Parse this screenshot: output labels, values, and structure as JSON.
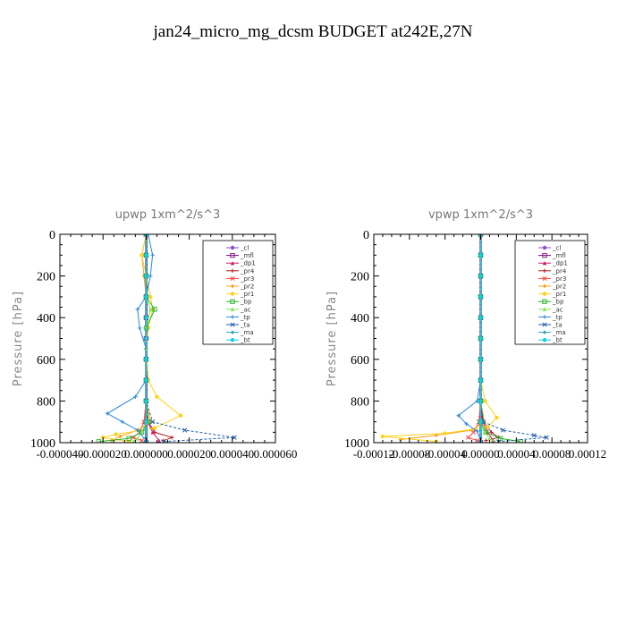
{
  "page": {
    "title": "jan24_micro_mg_dcsm  BUDGET at242E,27N"
  },
  "chart_data": [
    {
      "type": "line",
      "title": "upwp   1xm^2/s^3",
      "xlabel": "",
      "ylabel": "Pressure [hPa]",
      "xlim": [
        -4e-05,
        6e-05
      ],
      "ylim": [
        1000,
        0
      ],
      "x_tick_labels": [
        "-0.000040",
        "-0.000020",
        "0.000000",
        "0.000020",
        "0.000040",
        "0.000060"
      ],
      "y_tick_labels": [
        "0",
        "200",
        "400",
        "600",
        "800",
        "1000"
      ],
      "legend_position": "upper-right",
      "series": [
        {
          "name": "_cl",
          "color": "#8a4fc7",
          "x": [
            2e-07,
            2e-07,
            2e-07,
            2e-07,
            2e-07,
            2e-07,
            2e-07,
            2e-07,
            2e-07,
            2e-07,
            2e-07
          ],
          "y": [
            0,
            100,
            200,
            300,
            400,
            500,
            600,
            700,
            800,
            900,
            1000
          ]
        },
        {
          "name": "_mfl",
          "color": "#7a0a7a",
          "x": [
            0,
            0,
            0,
            0,
            0,
            0,
            0,
            0,
            0,
            0,
            0
          ],
          "y": [
            0,
            100,
            200,
            300,
            400,
            500,
            600,
            700,
            800,
            900,
            1000
          ]
        },
        {
          "name": "_dp1",
          "color": "#cc1a66",
          "x": [
            0,
            0,
            0,
            0,
            0,
            0,
            0,
            0,
            4e-07,
            8e-07,
            3e-06,
            6e-06
          ],
          "y": [
            0,
            100,
            200,
            300,
            400,
            500,
            600,
            700,
            800,
            900,
            950,
            990
          ]
        },
        {
          "name": "_pr4",
          "color": "#b22222",
          "x": [
            0,
            0,
            0,
            0,
            0,
            0,
            0,
            0,
            0,
            1e-06,
            4e-06,
            1.2e-05,
            8e-06
          ],
          "y": [
            0,
            100,
            200,
            300,
            400,
            500,
            600,
            700,
            800,
            900,
            950,
            975,
            990
          ]
        },
        {
          "name": "_pr3",
          "color": "#ff4040",
          "x": [
            0,
            0,
            0,
            0,
            0,
            0,
            0,
            0,
            0,
            -1e-06,
            -3e-06,
            -6e-06,
            -2e-06
          ],
          "y": [
            0,
            100,
            200,
            300,
            400,
            500,
            600,
            700,
            800,
            900,
            950,
            975,
            990
          ]
        },
        {
          "name": "_pr2",
          "color": "#ff9f1a",
          "x": [
            0,
            -2e-06,
            -1e-06,
            0,
            0,
            0,
            0,
            0,
            0,
            2e-06,
            -4e-06,
            -1.2e-05,
            -1.6e-05
          ],
          "y": [
            0,
            100,
            200,
            300,
            400,
            500,
            600,
            700,
            800,
            900,
            940,
            970,
            990
          ]
        },
        {
          "name": "_pr1",
          "color": "#ffd21a",
          "x": [
            0,
            -2e-06,
            0,
            2e-06,
            3e-06,
            1e-06,
            0,
            1e-06,
            5e-06,
            1.6e-05,
            4e-06,
            -1.4e-05,
            -2e-05,
            -8e-06
          ],
          "y": [
            0,
            100,
            200,
            300,
            360,
            450,
            550,
            700,
            780,
            870,
            930,
            960,
            975,
            995
          ]
        },
        {
          "name": "_bp",
          "color": "#22b022",
          "x": [
            0,
            0,
            0,
            0,
            4e-06,
            0,
            0,
            0,
            0,
            1e-06,
            -2e-06,
            -8e-06,
            -2.2e-05
          ],
          "y": [
            0,
            100,
            200,
            300,
            360,
            450,
            600,
            700,
            800,
            900,
            950,
            980,
            995
          ]
        },
        {
          "name": "_ac",
          "color": "#88e060",
          "x": [
            0,
            0,
            0,
            0,
            2e-06,
            0,
            0,
            0,
            0,
            0,
            -2e-06,
            -4e-06,
            -6e-06
          ],
          "y": [
            0,
            100,
            200,
            300,
            360,
            450,
            600,
            700,
            800,
            900,
            950,
            980,
            995
          ]
        },
        {
          "name": "_tp",
          "color": "#2a88d8",
          "x": [
            1e-06,
            3e-06,
            2e-06,
            0,
            -4e-06,
            -3e-06,
            0,
            0,
            -5e-06,
            -1.8e-05,
            -1.1e-05,
            -4e-06,
            0
          ],
          "y": [
            0,
            100,
            200,
            300,
            360,
            450,
            550,
            700,
            780,
            860,
            900,
            940,
            990
          ]
        },
        {
          "name": "_ta",
          "color": "#1f5fa8",
          "x": [
            0,
            0,
            0,
            0,
            0,
            0,
            0,
            0,
            0,
            3e-06,
            1.8e-05,
            4.1e-05,
            8e-06
          ],
          "y": [
            0,
            100,
            200,
            300,
            400,
            500,
            600,
            700,
            800,
            900,
            940,
            975,
            995
          ]
        },
        {
          "name": "_ma",
          "color": "#2fa0b8",
          "x": [
            0,
            0,
            0,
            0,
            0,
            0,
            0,
            0,
            0,
            0,
            0,
            0,
            0
          ],
          "y": [
            0,
            100,
            200,
            300,
            400,
            500,
            600,
            700,
            800,
            900,
            940,
            975,
            995
          ]
        },
        {
          "name": "_bt",
          "color": "#10d0e0",
          "x": [
            0,
            0,
            0,
            0,
            0,
            0,
            0,
            0,
            0,
            0,
            0
          ],
          "y": [
            0,
            100,
            200,
            300,
            400,
            500,
            600,
            700,
            800,
            900,
            1000
          ]
        }
      ]
    },
    {
      "type": "line",
      "title": "vpwp   1xm^2/s^3",
      "xlabel": "",
      "ylabel": "Pressure [hPa]",
      "xlim": [
        -0.00012,
        0.00012
      ],
      "ylim": [
        1000,
        0
      ],
      "x_tick_labels": [
        "-0.00012",
        "-0.00008",
        "-0.00004",
        "0.00000",
        "0.00004",
        "0.00008",
        "0.00012"
      ],
      "y_tick_labels": [
        "0",
        "200",
        "400",
        "600",
        "800",
        "1000"
      ],
      "legend_position": "upper-right",
      "series": [
        {
          "name": "_cl",
          "color": "#8a4fc7",
          "x": [
            0,
            0,
            0,
            0,
            0,
            0,
            0,
            0,
            0,
            0,
            0
          ],
          "y": [
            0,
            100,
            200,
            300,
            400,
            500,
            600,
            700,
            800,
            900,
            1000
          ]
        },
        {
          "name": "_mfl",
          "color": "#7a0a7a",
          "x": [
            0,
            0,
            0,
            0,
            0,
            0,
            0,
            0,
            0,
            0,
            0
          ],
          "y": [
            0,
            100,
            200,
            300,
            400,
            500,
            600,
            700,
            800,
            900,
            1000
          ]
        },
        {
          "name": "_dp1",
          "color": "#cc1a66",
          "x": [
            0,
            0,
            0,
            0,
            0,
            0,
            0,
            0,
            0,
            2e-06,
            8e-06,
            1.4e-05
          ],
          "y": [
            0,
            100,
            200,
            300,
            400,
            500,
            600,
            700,
            800,
            900,
            950,
            990
          ]
        },
        {
          "name": "_pr4",
          "color": "#b22222",
          "x": [
            0,
            0,
            0,
            0,
            0,
            0,
            0,
            0,
            0,
            3e-06,
            1.2e-05,
            2e-05,
            6e-06
          ],
          "y": [
            0,
            100,
            200,
            300,
            400,
            500,
            600,
            700,
            800,
            900,
            950,
            975,
            990
          ]
        },
        {
          "name": "_pr3",
          "color": "#ff4040",
          "x": [
            0,
            0,
            0,
            0,
            0,
            0,
            0,
            0,
            0,
            -2e-06,
            -8e-06,
            -1.4e-05,
            -4e-06
          ],
          "y": [
            0,
            100,
            200,
            300,
            400,
            500,
            600,
            700,
            800,
            900,
            950,
            975,
            990
          ]
        },
        {
          "name": "_pr2",
          "color": "#ff9f1a",
          "x": [
            0,
            0,
            0,
            0,
            0,
            0,
            0,
            0,
            0,
            4e-06,
            -1e-05,
            -5e-05,
            -9e-05
          ],
          "y": [
            0,
            100,
            200,
            300,
            400,
            500,
            600,
            700,
            800,
            900,
            940,
            965,
            985
          ]
        },
        {
          "name": "_pr1",
          "color": "#ffd21a",
          "x": [
            0,
            0,
            0,
            0,
            0,
            0,
            0,
            0,
            5e-06,
            1.8e-05,
            8e-06,
            -4e-05,
            -0.00011,
            -5e-05
          ],
          "y": [
            0,
            100,
            200,
            300,
            400,
            500,
            600,
            700,
            800,
            880,
            925,
            955,
            970,
            995
          ]
        },
        {
          "name": "_bp",
          "color": "#22b022",
          "x": [
            0,
            0,
            0,
            0,
            0,
            0,
            0,
            0,
            0,
            0,
            6e-06,
            2.2e-05,
            4.5e-05
          ],
          "y": [
            0,
            100,
            200,
            300,
            400,
            500,
            600,
            700,
            800,
            900,
            950,
            980,
            995
          ]
        },
        {
          "name": "_ac",
          "color": "#88e060",
          "x": [
            0,
            0,
            0,
            0,
            0,
            0,
            0,
            0,
            0,
            0,
            4e-06,
            1e-05,
            1.6e-05
          ],
          "y": [
            0,
            100,
            200,
            300,
            400,
            500,
            600,
            700,
            800,
            900,
            950,
            980,
            995
          ]
        },
        {
          "name": "_tp",
          "color": "#2a88d8",
          "x": [
            0,
            0,
            0,
            0,
            0,
            0,
            0,
            0,
            -4e-06,
            -2.5e-05,
            -1.6e-05,
            -4e-06,
            0
          ],
          "y": [
            0,
            100,
            200,
            300,
            400,
            500,
            600,
            700,
            800,
            870,
            910,
            945,
            990
          ]
        },
        {
          "name": "_ta",
          "color": "#1f5fa8",
          "x": [
            0,
            0,
            0,
            0,
            0,
            0,
            0,
            0,
            0,
            3e-06,
            2.5e-05,
            6e-05,
            7.4e-05,
            2e-05
          ],
          "y": [
            0,
            100,
            200,
            300,
            400,
            500,
            600,
            700,
            800,
            900,
            940,
            965,
            975,
            995
          ]
        },
        {
          "name": "_ma",
          "color": "#2fa0b8",
          "x": [
            0,
            0,
            0,
            0,
            0,
            0,
            0,
            0,
            0,
            0,
            0,
            0,
            0
          ],
          "y": [
            0,
            100,
            200,
            300,
            400,
            500,
            600,
            700,
            800,
            900,
            940,
            975,
            995
          ]
        },
        {
          "name": "_bt",
          "color": "#10d0e0",
          "x": [
            0,
            0,
            0,
            0,
            0,
            0,
            0,
            0,
            0,
            0,
            0
          ],
          "y": [
            0,
            100,
            200,
            300,
            400,
            500,
            600,
            700,
            800,
            900,
            1000
          ]
        }
      ]
    }
  ]
}
